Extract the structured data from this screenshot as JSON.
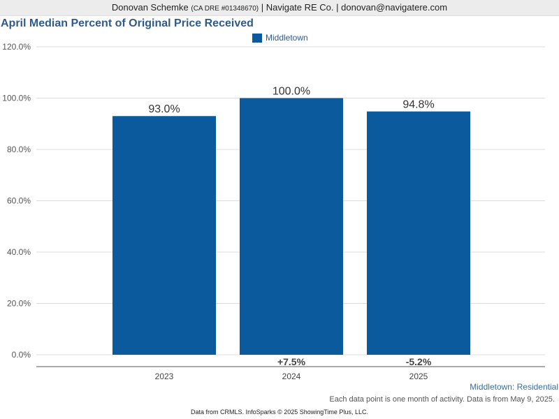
{
  "header": {
    "name": "Donovan Schemke",
    "license": "(CA DRE #01348670)",
    "rest": "| Navigate RE Co. | donovan@navigatere.com"
  },
  "chart_data": {
    "type": "bar",
    "title": "April Median Percent of Original Price Received",
    "legend": "Middletown",
    "legend_position": "top-center",
    "categories": [
      "2023",
      "2024",
      "2025"
    ],
    "values": [
      93.0,
      100.0,
      94.8
    ],
    "data_labels": [
      "93.0%",
      "100.0%",
      "94.8%"
    ],
    "changes": [
      "",
      "+7.5%",
      "-5.2%"
    ],
    "yticks": [
      0,
      20,
      40,
      60,
      80,
      100,
      120
    ],
    "ytick_labels": [
      "0.0%",
      "20.0%",
      "40.0%",
      "60.0%",
      "80.0%",
      "100.0%",
      "120.0%"
    ],
    "ylim": [
      0,
      120
    ],
    "grid": true,
    "bar_color": "#0b5a9e"
  },
  "series_caption": "Middletown: Residential",
  "note": "Each data point is one month of activity. Data is from May 9, 2025.",
  "footer": "Data from CRMLS. InfoSparks © 2025 ShowingTime Plus, LLC."
}
